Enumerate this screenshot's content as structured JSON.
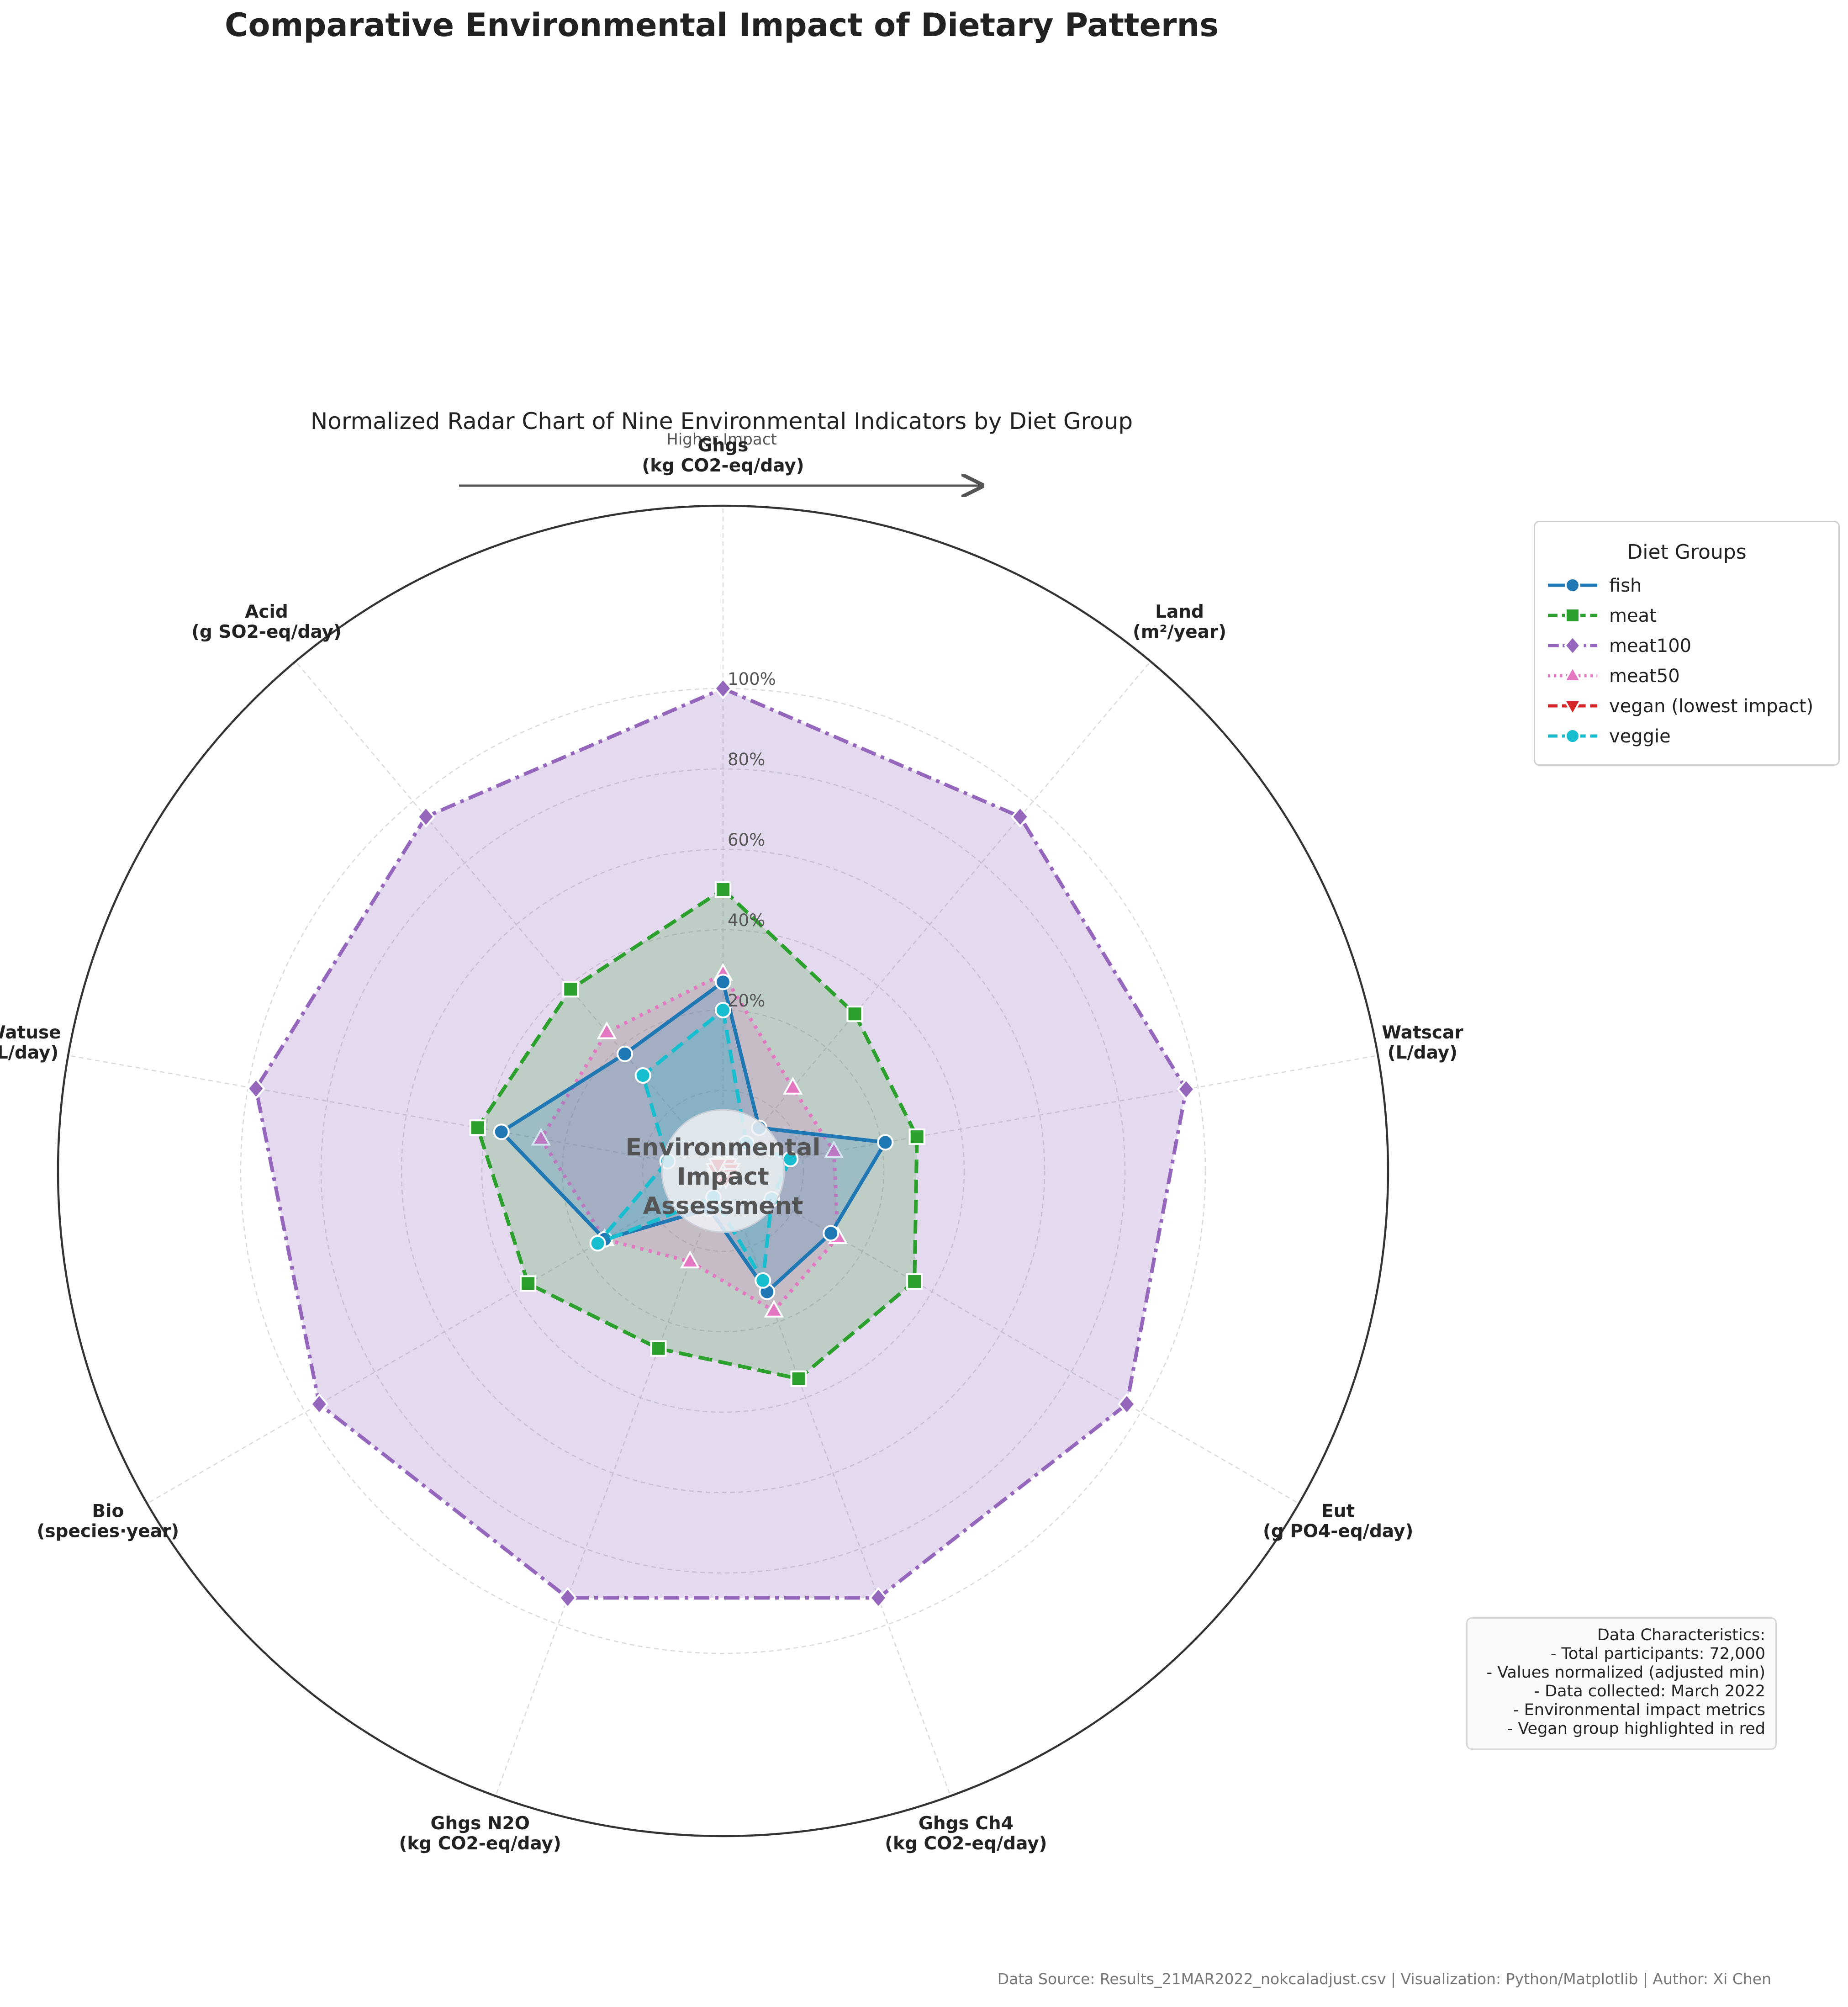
{
  "title": "Comparative Environmental Impact of Dietary Patterns",
  "subtitle": "Normalized Radar Chart of Nine Environmental Indicators by Diet Group",
  "direction_label": "Higher Impact",
  "center_label": "Environmental Impact Assessment",
  "chart_data": {
    "type": "radar",
    "title": "Normalized Radar Chart of Nine Environmental Indicators by Diet Group",
    "categories": [
      [
        "Ghgs",
        "(kg CO2-eq/day)"
      ],
      [
        "Land",
        "(m²/year)"
      ],
      [
        "Watscar",
        "(L/day)"
      ],
      [
        "Eut",
        "(g PO4-eq/day)"
      ],
      [
        "Ghgs Ch4",
        "(kg CO2-eq/day)"
      ],
      [
        "Ghgs N2O",
        "(kg CO2-eq/day)"
      ],
      [
        "Bio",
        "(species·year)"
      ],
      [
        "Watuse",
        "(L/day)"
      ],
      [
        "Acid",
        "(g SO2-eq/day)"
      ]
    ],
    "radial_ticks": [
      "20%",
      "40%",
      "60%",
      "80%",
      "100%"
    ],
    "rlim": [
      -0.2,
      1.0
    ],
    "grid": true,
    "legend_title": "Diet Groups",
    "legend_position": "right",
    "series": [
      {
        "name": "meat100",
        "color": "#9467bd",
        "marker": "diamond",
        "dash": "dashdot",
        "fill": 0.25,
        "values": [
          1.0,
          0.95,
          0.97,
          0.96,
          0.93,
          0.93,
          0.96,
          0.98,
          0.95
        ]
      },
      {
        "name": "meat",
        "color": "#2ca02c",
        "marker": "square",
        "dash": "dashed",
        "fill": 0.2,
        "values": [
          0.5,
          0.31,
          0.29,
          0.35,
          0.35,
          0.27,
          0.36,
          0.42,
          0.39
        ]
      },
      {
        "name": "meat50",
        "color": "#e377c2",
        "marker": "triangle-up",
        "dash": "dotted",
        "fill": 0.2,
        "values": [
          0.29,
          0.07,
          0.08,
          0.13,
          0.17,
          0.04,
          0.14,
          0.26,
          0.25
        ]
      },
      {
        "name": "fish",
        "color": "#1f77b4",
        "marker": "circle",
        "dash": "solid",
        "fill": 0.2,
        "values": [
          0.27,
          -0.06,
          0.21,
          0.11,
          0.12,
          -0.1,
          0.14,
          0.36,
          0.18
        ]
      },
      {
        "name": "veggie",
        "color": "#17becf",
        "marker": "circle",
        "dash": "dashed",
        "fill": 0.2,
        "values": [
          0.2,
          -0.11,
          -0.03,
          -0.06,
          0.09,
          -0.13,
          0.16,
          -0.06,
          0.11
        ]
      },
      {
        "name": "vegan (lowest impact)",
        "color": "#d62728",
        "marker": "triangle-down",
        "dash": "dashed",
        "fill": 0.3,
        "values": [
          -0.18,
          -0.18,
          -0.18,
          -0.18,
          -0.18,
          -0.18,
          -0.18,
          -0.18,
          -0.18
        ]
      }
    ]
  },
  "legend": {
    "title": "Diet Groups",
    "items": [
      {
        "name": "fish",
        "color": "#1f77b4",
        "marker": "circle",
        "dash": "solid"
      },
      {
        "name": "meat",
        "color": "#2ca02c",
        "marker": "square",
        "dash": "dashed"
      },
      {
        "name": "meat100",
        "color": "#9467bd",
        "marker": "diamond",
        "dash": "dashdot"
      },
      {
        "name": "meat50",
        "color": "#e377c2",
        "marker": "triangle-up",
        "dash": "dotted"
      },
      {
        "name": "vegan (lowest impact)",
        "color": "#d62728",
        "marker": "triangle-down",
        "dash": "dashed"
      },
      {
        "name": "veggie",
        "color": "#17becf",
        "marker": "circle",
        "dash": "dashed"
      }
    ]
  },
  "info": {
    "lines": [
      "Data Characteristics:",
      "- Total participants: 72,000",
      "- Values normalized (adjusted min)",
      "- Data collected: March 2022",
      "- Environmental impact metrics",
      "- Vegan group highlighted in red"
    ]
  },
  "footer": "Data Source: Results_21MAR2022_nokcaladjust.csv | Visualization: Python/Matplotlib | Author: Xi Chen"
}
